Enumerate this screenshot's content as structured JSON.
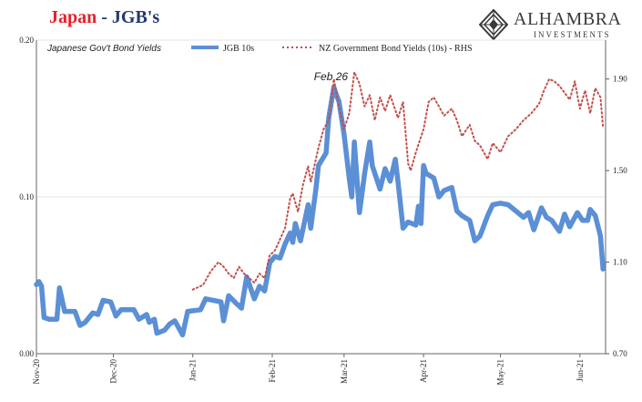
{
  "title": {
    "part1": "Japan",
    "part2": " - JGB's"
  },
  "logo": {
    "name": "ALHAMBRA",
    "sub": "INVESTMENTS",
    "icon": "diamond-logo-icon"
  },
  "colors": {
    "jgb": "#5b8fd6",
    "nz": "#c0504d",
    "title_red": "#e8212b",
    "title_navy": "#1f3a6e"
  },
  "chart_data": {
    "type": "line",
    "legend": {
      "series_label": "Japanese Gov't Bond Yields",
      "placement": "top"
    },
    "annotation": {
      "text": "Feb 26",
      "x": "2021-02-26"
    },
    "x_ticks": [
      {
        "label": "Nov-20",
        "date": "2020-11-01"
      },
      {
        "label": "Dec-20",
        "date": "2020-12-01"
      },
      {
        "label": "Jan-21",
        "date": "2021-01-01"
      },
      {
        "label": "Feb-21",
        "date": "2021-02-01"
      },
      {
        "label": "Mar-21",
        "date": "2021-03-01"
      },
      {
        "label": "Apr-21",
        "date": "2021-04-01"
      },
      {
        "label": "May-21",
        "date": "2021-05-01"
      },
      {
        "label": "Jun-21",
        "date": "2021-06-01"
      }
    ],
    "xlim": [
      "2020-11-01",
      "2021-06-11"
    ],
    "y_left": {
      "ticks": [
        "0.00",
        "0.10",
        "0.20"
      ],
      "ylim": [
        0,
        0.2
      ]
    },
    "y_right": {
      "ticks": [
        "0.70",
        "1.10",
        "1.50",
        "1.90"
      ],
      "ylim": [
        0.7,
        2.07
      ]
    },
    "grid": true,
    "series": [
      {
        "name": "JGB 10s",
        "axis": "left",
        "style": "solid",
        "points": [
          [
            "2020-11-01",
            0.044
          ],
          [
            "2020-11-02",
            0.046
          ],
          [
            "2020-11-03",
            0.043
          ],
          [
            "2020-11-04",
            0.023
          ],
          [
            "2020-11-06",
            0.022
          ],
          [
            "2020-11-09",
            0.022
          ],
          [
            "2020-11-10",
            0.042
          ],
          [
            "2020-11-12",
            0.027
          ],
          [
            "2020-11-16",
            0.027
          ],
          [
            "2020-11-18",
            0.018
          ],
          [
            "2020-11-20",
            0.02
          ],
          [
            "2020-11-23",
            0.026
          ],
          [
            "2020-11-25",
            0.025
          ],
          [
            "2020-11-27",
            0.034
          ],
          [
            "2020-11-30",
            0.033
          ],
          [
            "2020-12-02",
            0.024
          ],
          [
            "2020-12-04",
            0.028
          ],
          [
            "2020-12-07",
            0.028
          ],
          [
            "2020-12-09",
            0.028
          ],
          [
            "2020-12-11",
            0.022
          ],
          [
            "2020-12-14",
            0.025
          ],
          [
            "2020-12-15",
            0.02
          ],
          [
            "2020-12-17",
            0.022
          ],
          [
            "2020-12-18",
            0.013
          ],
          [
            "2020-12-21",
            0.015
          ],
          [
            "2020-12-23",
            0.019
          ],
          [
            "2020-12-25",
            0.021
          ],
          [
            "2020-12-28",
            0.012
          ],
          [
            "2020-12-30",
            0.027
          ],
          [
            "2021-01-04",
            0.028
          ],
          [
            "2021-01-06",
            0.035
          ],
          [
            "2021-01-12",
            0.033
          ],
          [
            "2021-01-13",
            0.021
          ],
          [
            "2021-01-15",
            0.037
          ],
          [
            "2021-01-18",
            0.032
          ],
          [
            "2021-01-20",
            0.029
          ],
          [
            "2021-01-22",
            0.049
          ],
          [
            "2021-01-25",
            0.035
          ],
          [
            "2021-01-27",
            0.043
          ],
          [
            "2021-01-29",
            0.04
          ],
          [
            "2021-01-31",
            0.058
          ],
          [
            "2021-02-02",
            0.062
          ],
          [
            "2021-02-04",
            0.061
          ],
          [
            "2021-02-06",
            0.07
          ],
          [
            "2021-02-08",
            0.077
          ],
          [
            "2021-02-09",
            0.071
          ],
          [
            "2021-02-10",
            0.083
          ],
          [
            "2021-02-12",
            0.072
          ],
          [
            "2021-02-15",
            0.095
          ],
          [
            "2021-02-16",
            0.08
          ],
          [
            "2021-02-18",
            0.105
          ],
          [
            "2021-02-19",
            0.12
          ],
          [
            "2021-02-22",
            0.128
          ],
          [
            "2021-02-23",
            0.15
          ],
          [
            "2021-02-25",
            0.17
          ],
          [
            "2021-02-26",
            0.165
          ],
          [
            "2021-02-27",
            0.161
          ],
          [
            "2021-03-01",
            0.14
          ],
          [
            "2021-03-03",
            0.112
          ],
          [
            "2021-03-04",
            0.1
          ],
          [
            "2021-03-05",
            0.135
          ],
          [
            "2021-03-07",
            0.09
          ],
          [
            "2021-03-08",
            0.102
          ],
          [
            "2021-03-09",
            0.115
          ],
          [
            "2021-03-11",
            0.135
          ],
          [
            "2021-03-12",
            0.12
          ],
          [
            "2021-03-15",
            0.105
          ],
          [
            "2021-03-17",
            0.118
          ],
          [
            "2021-03-19",
            0.11
          ],
          [
            "2021-03-21",
            0.124
          ],
          [
            "2021-03-22",
            0.11
          ],
          [
            "2021-03-23",
            0.095
          ],
          [
            "2021-03-24",
            0.08
          ],
          [
            "2021-03-26",
            0.084
          ],
          [
            "2021-03-29",
            0.082
          ],
          [
            "2021-03-30",
            0.094
          ],
          [
            "2021-03-31",
            0.083
          ],
          [
            "2021-04-01",
            0.12
          ],
          [
            "2021-04-02",
            0.115
          ],
          [
            "2021-04-05",
            0.112
          ],
          [
            "2021-04-07",
            0.1
          ],
          [
            "2021-04-09",
            0.104
          ],
          [
            "2021-04-12",
            0.106
          ],
          [
            "2021-04-14",
            0.091
          ],
          [
            "2021-04-16",
            0.088
          ],
          [
            "2021-04-19",
            0.085
          ],
          [
            "2021-04-21",
            0.072
          ],
          [
            "2021-04-23",
            0.075
          ],
          [
            "2021-04-26",
            0.088
          ],
          [
            "2021-04-28",
            0.095
          ],
          [
            "2021-05-01",
            0.096
          ],
          [
            "2021-05-04",
            0.095
          ],
          [
            "2021-05-07",
            0.091
          ],
          [
            "2021-05-10",
            0.087
          ],
          [
            "2021-05-12",
            0.09
          ],
          [
            "2021-05-14",
            0.079
          ],
          [
            "2021-05-17",
            0.093
          ],
          [
            "2021-05-19",
            0.087
          ],
          [
            "2021-05-21",
            0.085
          ],
          [
            "2021-05-24",
            0.078
          ],
          [
            "2021-05-26",
            0.089
          ],
          [
            "2021-05-28",
            0.081
          ],
          [
            "2021-05-31",
            0.09
          ],
          [
            "2021-06-02",
            0.085
          ],
          [
            "2021-06-04",
            0.085
          ],
          [
            "2021-06-05",
            0.092
          ],
          [
            "2021-06-07",
            0.088
          ],
          [
            "2021-06-09",
            0.075
          ],
          [
            "2021-06-10",
            0.054
          ]
        ]
      },
      {
        "name": "NZ Government Bond Yields (10s) - RHS",
        "axis": "right",
        "style": "dotted",
        "points": [
          [
            "2021-01-01",
            0.98
          ],
          [
            "2021-01-05",
            1.0
          ],
          [
            "2021-01-08",
            1.06
          ],
          [
            "2021-01-11",
            1.1
          ],
          [
            "2021-01-13",
            1.08
          ],
          [
            "2021-01-15",
            1.05
          ],
          [
            "2021-01-17",
            1.03
          ],
          [
            "2021-01-19",
            1.08
          ],
          [
            "2021-01-21",
            1.05
          ],
          [
            "2021-01-23",
            1.03
          ],
          [
            "2021-01-25",
            1.01
          ],
          [
            "2021-01-27",
            1.05
          ],
          [
            "2021-01-29",
            1.03
          ],
          [
            "2021-01-31",
            1.13
          ],
          [
            "2021-02-02",
            1.15
          ],
          [
            "2021-02-04",
            1.2
          ],
          [
            "2021-02-06",
            1.25
          ],
          [
            "2021-02-08",
            1.38
          ],
          [
            "2021-02-09",
            1.4
          ],
          [
            "2021-02-11",
            1.32
          ],
          [
            "2021-02-13",
            1.44
          ],
          [
            "2021-02-15",
            1.52
          ],
          [
            "2021-02-16",
            1.45
          ],
          [
            "2021-02-18",
            1.55
          ],
          [
            "2021-02-19",
            1.6
          ],
          [
            "2021-02-21",
            1.68
          ],
          [
            "2021-02-23",
            1.72
          ],
          [
            "2021-02-24",
            1.8
          ],
          [
            "2021-02-25",
            1.9
          ],
          [
            "2021-02-27",
            1.78
          ],
          [
            "2021-03-01",
            1.68
          ],
          [
            "2021-03-03",
            1.75
          ],
          [
            "2021-03-05",
            1.93
          ],
          [
            "2021-03-07",
            1.88
          ],
          [
            "2021-03-09",
            1.78
          ],
          [
            "2021-03-11",
            1.83
          ],
          [
            "2021-03-13",
            1.72
          ],
          [
            "2021-03-15",
            1.82
          ],
          [
            "2021-03-17",
            1.76
          ],
          [
            "2021-03-19",
            1.83
          ],
          [
            "2021-03-22",
            1.73
          ],
          [
            "2021-03-24",
            1.8
          ],
          [
            "2021-03-26",
            1.53
          ],
          [
            "2021-03-27",
            1.5
          ],
          [
            "2021-03-29",
            1.58
          ],
          [
            "2021-04-01",
            1.68
          ],
          [
            "2021-04-03",
            1.8
          ],
          [
            "2021-04-05",
            1.82
          ],
          [
            "2021-04-07",
            1.78
          ],
          [
            "2021-04-09",
            1.74
          ],
          [
            "2021-04-12",
            1.77
          ],
          [
            "2021-04-14",
            1.72
          ],
          [
            "2021-04-16",
            1.65
          ],
          [
            "2021-04-19",
            1.7
          ],
          [
            "2021-04-21",
            1.63
          ],
          [
            "2021-04-23",
            1.61
          ],
          [
            "2021-04-26",
            1.55
          ],
          [
            "2021-04-28",
            1.62
          ],
          [
            "2021-05-01",
            1.58
          ],
          [
            "2021-05-04",
            1.65
          ],
          [
            "2021-05-07",
            1.68
          ],
          [
            "2021-05-10",
            1.72
          ],
          [
            "2021-05-13",
            1.75
          ],
          [
            "2021-05-16",
            1.79
          ],
          [
            "2021-05-18",
            1.85
          ],
          [
            "2021-05-20",
            1.9
          ],
          [
            "2021-05-22",
            1.89
          ],
          [
            "2021-05-24",
            1.87
          ],
          [
            "2021-05-26",
            1.84
          ],
          [
            "2021-05-28",
            1.81
          ],
          [
            "2021-05-30",
            1.89
          ],
          [
            "2021-06-01",
            1.77
          ],
          [
            "2021-06-03",
            1.85
          ],
          [
            "2021-06-05",
            1.75
          ],
          [
            "2021-06-07",
            1.86
          ],
          [
            "2021-06-09",
            1.82
          ],
          [
            "2021-06-10",
            1.69
          ]
        ]
      }
    ]
  }
}
